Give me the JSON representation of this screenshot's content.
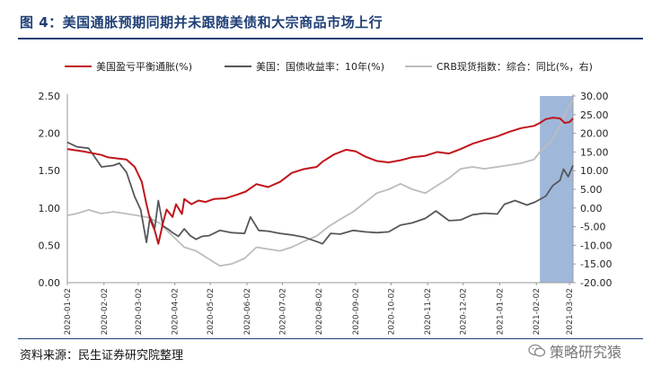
{
  "figure": {
    "title": "图 4：美国通胀预期同期并未跟随美债和大宗商品市场上行",
    "source": "资料来源：民生证券研究院整理",
    "watermark": "策略研究猿"
  },
  "chart_data": {
    "type": "line",
    "title": "",
    "legend_position": "top",
    "x_ticks": [
      "2020-01-02",
      "2020-02-02",
      "2020-03-02",
      "2020-04-02",
      "2020-05-02",
      "2020-06-02",
      "2020-07-02",
      "2020-08-02",
      "2020-09-02",
      "2020-10-02",
      "2020-11-02",
      "2020-12-02",
      "2021-01-02",
      "2021-02-02",
      "2021-03-02"
    ],
    "y_left": {
      "ticks": [
        "0.00",
        "0.50",
        "1.00",
        "1.50",
        "2.00",
        "2.50"
      ],
      "ylim": [
        0,
        2.5
      ]
    },
    "y_right": {
      "ticks": [
        "-20.00",
        "-15.00",
        "-10.00",
        "-5.00",
        "0.00",
        "5.00",
        "10.00",
        "15.00",
        "20.00",
        "25.00",
        "30.00"
      ],
      "ylim": [
        -20,
        30
      ]
    },
    "highlight": {
      "from": "2021-02-05",
      "to": "2021-03-05",
      "color": "#9fb8da"
    },
    "series": [
      {
        "name": "美国盈亏平衡通胀(%)",
        "axis": "left",
        "color": "#c0151b",
        "points": [
          [
            "2020-01-02",
            1.79
          ],
          [
            "2020-01-15",
            1.76
          ],
          [
            "2020-01-31",
            1.71
          ],
          [
            "2020-02-05",
            1.68
          ],
          [
            "2020-02-15",
            1.66
          ],
          [
            "2020-02-21",
            1.65
          ],
          [
            "2020-02-28",
            1.55
          ],
          [
            "2020-03-05",
            1.35
          ],
          [
            "2020-03-09",
            1.05
          ],
          [
            "2020-03-12",
            0.85
          ],
          [
            "2020-03-16",
            0.7
          ],
          [
            "2020-03-19",
            0.52
          ],
          [
            "2020-03-23",
            0.8
          ],
          [
            "2020-03-26",
            0.98
          ],
          [
            "2020-03-31",
            0.88
          ],
          [
            "2020-04-03",
            1.05
          ],
          [
            "2020-04-08",
            0.92
          ],
          [
            "2020-04-10",
            1.12
          ],
          [
            "2020-04-16",
            1.05
          ],
          [
            "2020-04-22",
            1.1
          ],
          [
            "2020-04-28",
            1.08
          ],
          [
            "2020-05-05",
            1.12
          ],
          [
            "2020-05-15",
            1.13
          ],
          [
            "2020-05-25",
            1.18
          ],
          [
            "2020-06-01",
            1.22
          ],
          [
            "2020-06-10",
            1.32
          ],
          [
            "2020-06-20",
            1.28
          ],
          [
            "2020-06-30",
            1.35
          ],
          [
            "2020-07-10",
            1.47
          ],
          [
            "2020-07-20",
            1.52
          ],
          [
            "2020-07-31",
            1.55
          ],
          [
            "2020-08-05",
            1.62
          ],
          [
            "2020-08-15",
            1.72
          ],
          [
            "2020-08-25",
            1.78
          ],
          [
            "2020-09-02",
            1.76
          ],
          [
            "2020-09-10",
            1.69
          ],
          [
            "2020-09-20",
            1.63
          ],
          [
            "2020-09-30",
            1.61
          ],
          [
            "2020-10-10",
            1.64
          ],
          [
            "2020-10-20",
            1.68
          ],
          [
            "2020-10-31",
            1.7
          ],
          [
            "2020-11-10",
            1.75
          ],
          [
            "2020-11-20",
            1.73
          ],
          [
            "2020-11-30",
            1.79
          ],
          [
            "2020-12-10",
            1.86
          ],
          [
            "2020-12-20",
            1.91
          ],
          [
            "2020-12-31",
            1.96
          ],
          [
            "2021-01-10",
            2.02
          ],
          [
            "2021-01-20",
            2.07
          ],
          [
            "2021-01-31",
            2.1
          ],
          [
            "2021-02-05",
            2.14
          ],
          [
            "2021-02-10",
            2.19
          ],
          [
            "2021-02-16",
            2.21
          ],
          [
            "2021-02-22",
            2.2
          ],
          [
            "2021-02-26",
            2.14
          ],
          [
            "2021-03-02",
            2.15
          ],
          [
            "2021-03-05",
            2.2
          ]
        ]
      },
      {
        "name": "美国：国债收益率：10年(%)",
        "axis": "left",
        "color": "#55575b",
        "points": [
          [
            "2020-01-02",
            1.88
          ],
          [
            "2020-01-10",
            1.82
          ],
          [
            "2020-01-20",
            1.8
          ],
          [
            "2020-01-31",
            1.55
          ],
          [
            "2020-02-10",
            1.57
          ],
          [
            "2020-02-15",
            1.6
          ],
          [
            "2020-02-21",
            1.48
          ],
          [
            "2020-02-28",
            1.15
          ],
          [
            "2020-03-04",
            0.98
          ],
          [
            "2020-03-09",
            0.54
          ],
          [
            "2020-03-12",
            0.88
          ],
          [
            "2020-03-16",
            0.73
          ],
          [
            "2020-03-19",
            1.1
          ],
          [
            "2020-03-23",
            0.76
          ],
          [
            "2020-03-27",
            0.72
          ],
          [
            "2020-03-31",
            0.67
          ],
          [
            "2020-04-05",
            0.62
          ],
          [
            "2020-04-10",
            0.72
          ],
          [
            "2020-04-15",
            0.63
          ],
          [
            "2020-04-20",
            0.58
          ],
          [
            "2020-04-25",
            0.62
          ],
          [
            "2020-05-01",
            0.63
          ],
          [
            "2020-05-10",
            0.7
          ],
          [
            "2020-05-20",
            0.67
          ],
          [
            "2020-05-31",
            0.66
          ],
          [
            "2020-06-05",
            0.88
          ],
          [
            "2020-06-12",
            0.7
          ],
          [
            "2020-06-20",
            0.69
          ],
          [
            "2020-06-30",
            0.66
          ],
          [
            "2020-07-10",
            0.64
          ],
          [
            "2020-07-20",
            0.61
          ],
          [
            "2020-07-31",
            0.55
          ],
          [
            "2020-08-05",
            0.52
          ],
          [
            "2020-08-12",
            0.66
          ],
          [
            "2020-08-20",
            0.65
          ],
          [
            "2020-08-31",
            0.7
          ],
          [
            "2020-09-10",
            0.68
          ],
          [
            "2020-09-20",
            0.67
          ],
          [
            "2020-09-30",
            0.68
          ],
          [
            "2020-10-10",
            0.77
          ],
          [
            "2020-10-20",
            0.8
          ],
          [
            "2020-10-31",
            0.86
          ],
          [
            "2020-11-09",
            0.96
          ],
          [
            "2020-11-20",
            0.83
          ],
          [
            "2020-11-30",
            0.84
          ],
          [
            "2020-12-10",
            0.91
          ],
          [
            "2020-12-20",
            0.93
          ],
          [
            "2020-12-31",
            0.92
          ],
          [
            "2021-01-06",
            1.05
          ],
          [
            "2021-01-15",
            1.1
          ],
          [
            "2021-01-25",
            1.04
          ],
          [
            "2021-02-01",
            1.08
          ],
          [
            "2021-02-10",
            1.16
          ],
          [
            "2021-02-16",
            1.3
          ],
          [
            "2021-02-22",
            1.37
          ],
          [
            "2021-02-25",
            1.52
          ],
          [
            "2021-03-01",
            1.42
          ],
          [
            "2021-03-05",
            1.57
          ]
        ]
      },
      {
        "name": "CRB现货指数：综合：同比(%，右)",
        "axis": "right",
        "color": "#bcbcbc",
        "points": [
          [
            "2020-01-02",
            -2.0
          ],
          [
            "2020-01-10",
            -1.5
          ],
          [
            "2020-01-20",
            -0.5
          ],
          [
            "2020-01-31",
            -1.5
          ],
          [
            "2020-02-10",
            -1.0
          ],
          [
            "2020-02-20",
            -1.5
          ],
          [
            "2020-03-01",
            -2.0
          ],
          [
            "2020-03-10",
            -2.5
          ],
          [
            "2020-03-20",
            -4.0
          ],
          [
            "2020-03-31",
            -7.5
          ],
          [
            "2020-04-10",
            -10.5
          ],
          [
            "2020-04-20",
            -11.5
          ],
          [
            "2020-04-30",
            -13.5
          ],
          [
            "2020-05-10",
            -15.5
          ],
          [
            "2020-05-20",
            -15.0
          ],
          [
            "2020-05-31",
            -13.5
          ],
          [
            "2020-06-10",
            -10.5
          ],
          [
            "2020-06-20",
            -11.0
          ],
          [
            "2020-06-30",
            -11.5
          ],
          [
            "2020-07-10",
            -10.5
          ],
          [
            "2020-07-20",
            -9.0
          ],
          [
            "2020-07-31",
            -7.5
          ],
          [
            "2020-08-10",
            -5.0
          ],
          [
            "2020-08-20",
            -3.0
          ],
          [
            "2020-08-31",
            -1.0
          ],
          [
            "2020-09-10",
            1.5
          ],
          [
            "2020-09-20",
            4.0
          ],
          [
            "2020-09-30",
            5.0
          ],
          [
            "2020-10-10",
            6.5
          ],
          [
            "2020-10-20",
            5.0
          ],
          [
            "2020-10-31",
            4.0
          ],
          [
            "2020-11-10",
            6.0
          ],
          [
            "2020-11-20",
            8.0
          ],
          [
            "2020-11-30",
            10.5
          ],
          [
            "2020-12-10",
            11.0
          ],
          [
            "2020-12-20",
            10.5
          ],
          [
            "2020-12-31",
            11.0
          ],
          [
            "2021-01-10",
            11.5
          ],
          [
            "2021-01-20",
            12.0
          ],
          [
            "2021-01-31",
            13.0
          ],
          [
            "2021-02-05",
            15.0
          ],
          [
            "2021-02-15",
            18.0
          ],
          [
            "2021-02-22",
            22.0
          ],
          [
            "2021-03-01",
            27.0
          ],
          [
            "2021-03-05",
            29.0
          ]
        ]
      }
    ]
  }
}
